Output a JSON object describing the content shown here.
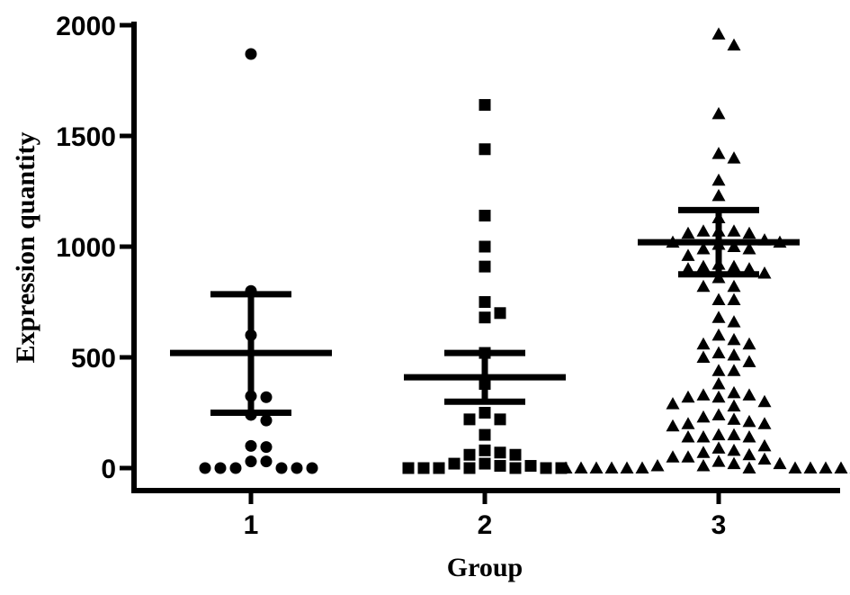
{
  "chart_data": {
    "type": "scatter",
    "title": "",
    "xlabel": "Group",
    "ylabel": "Expression quantity",
    "categories": [
      "1",
      "2",
      "3"
    ],
    "ylim": [
      0,
      2000
    ],
    "yticks": [
      "0",
      "500",
      "1000",
      "1500",
      "2000"
    ],
    "grid": false,
    "legend": "none",
    "marker_color": "#000000",
    "series": [
      {
        "category": "1",
        "marker": "circle",
        "mean": 520,
        "sem_upper": 785,
        "sem_lower": 250,
        "values": [
          1870,
          800,
          600,
          325,
          320,
          240,
          215,
          100,
          95,
          30,
          30,
          0,
          0,
          0,
          0,
          0,
          0
        ]
      },
      {
        "category": "2",
        "marker": "square",
        "mean": 410,
        "sem_upper": 520,
        "sem_lower": 300,
        "values": [
          1640,
          1440,
          1140,
          1000,
          910,
          750,
          700,
          680,
          520,
          380,
          250,
          220,
          220,
          150,
          80,
          70,
          60,
          60,
          20,
          20,
          10,
          10,
          0,
          0,
          0,
          0,
          0,
          0,
          0
        ]
      },
      {
        "category": "3",
        "marker": "triangle",
        "mean": 1020,
        "sem_upper": 1165,
        "sem_lower": 875,
        "values": [
          1960,
          1910,
          1600,
          1420,
          1400,
          1300,
          1230,
          1130,
          1070,
          1070,
          1070,
          1060,
          1060,
          1030,
          1020,
          1020,
          1010,
          1000,
          990,
          990,
          960,
          920,
          910,
          910,
          900,
          900,
          880,
          860,
          820,
          820,
          760,
          760,
          680,
          660,
          600,
          580,
          560,
          560,
          520,
          510,
          500,
          480,
          440,
          440,
          380,
          340,
          330,
          330,
          320,
          320,
          300,
          290,
          280,
          240,
          230,
          220,
          210,
          200,
          200,
          190,
          150,
          150,
          140,
          140,
          140,
          100,
          90,
          80,
          70,
          60,
          50,
          50,
          40,
          30,
          20,
          20,
          10,
          10,
          0,
          0,
          0,
          0,
          0,
          0,
          0,
          0,
          0,
          0,
          0,
          0,
          0
        ]
      }
    ]
  }
}
